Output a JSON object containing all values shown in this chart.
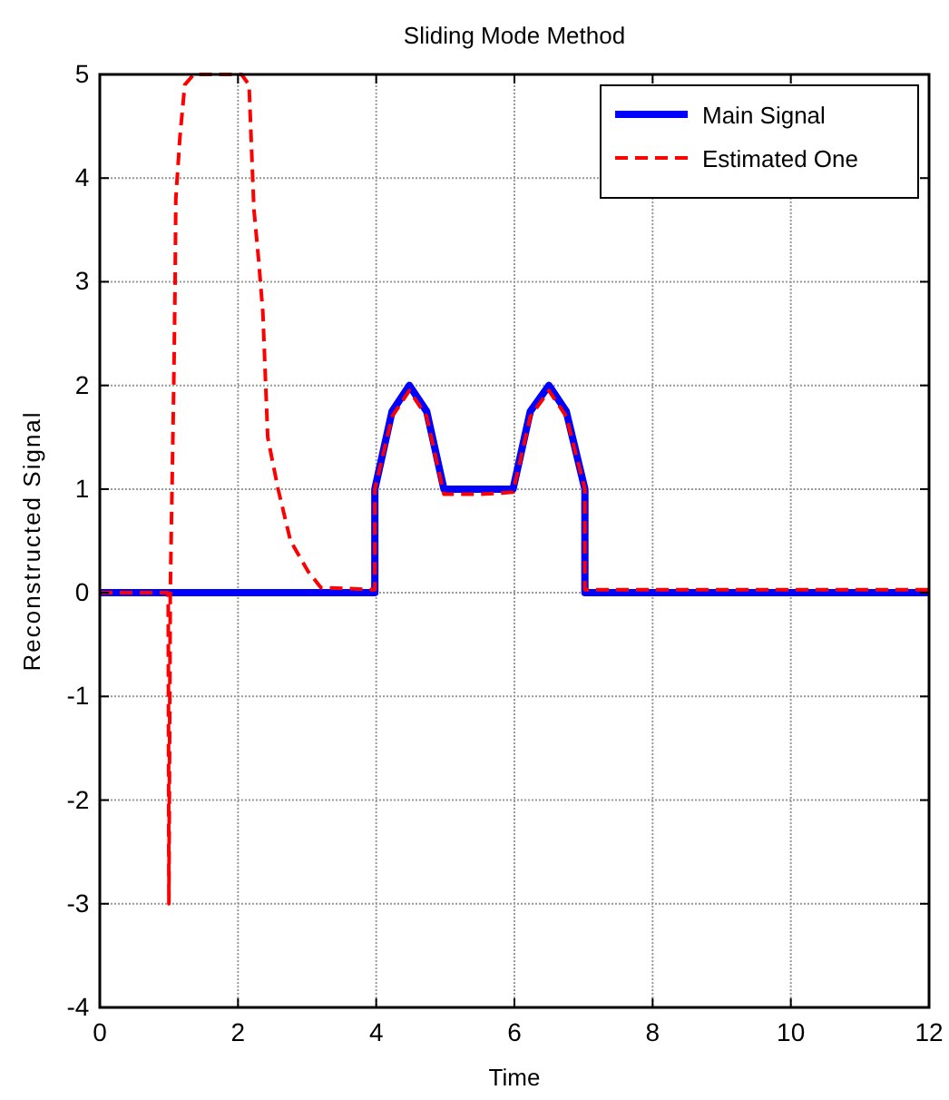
{
  "chart_data": {
    "type": "line",
    "title": "Sliding Mode Method",
    "xlabel": "Time",
    "ylabel": "Reconstructed Signal",
    "xlim": [
      0,
      12
    ],
    "ylim": [
      -4,
      5
    ],
    "xticks": [
      0,
      2,
      4,
      6,
      8,
      10,
      12
    ],
    "yticks": [
      -4,
      -3,
      -2,
      -1,
      0,
      1,
      2,
      3,
      4,
      5
    ],
    "grid": true,
    "legend": "top right",
    "marker": "none",
    "series": [
      {
        "name": "Main Signal",
        "color": "#0000ff",
        "line_style": "solid",
        "x": [
          0,
          3.98,
          3.98,
          4.23,
          4.48,
          4.73,
          4.98,
          5.98,
          6.23,
          6.5,
          6.75,
          7.02,
          7.02,
          12
        ],
        "values": [
          0,
          0,
          1,
          1.75,
          2,
          1.75,
          1,
          1,
          1.75,
          2,
          1.75,
          1,
          0,
          0
        ]
      },
      {
        "name": "Estimated One",
        "color": "#ff0000",
        "line_style": "dashed",
        "x": [
          0,
          0.99,
          1.0,
          1.02,
          1.07,
          1.09,
          1.1,
          1.16,
          1.23,
          1.36,
          2.05,
          2.16,
          2.23,
          2.3,
          2.36,
          2.43,
          2.58,
          2.76,
          3.02,
          3.2,
          3.98,
          3.98,
          4.23,
          4.48,
          4.73,
          4.98,
          5.5,
          5.98,
          6.23,
          6.5,
          6.75,
          7.02,
          7.02,
          12
        ],
        "values": [
          0,
          0,
          -3,
          0,
          2,
          3,
          3.8,
          4.4,
          4.9,
          5,
          5,
          4.9,
          3.7,
          3.2,
          2.7,
          1.5,
          1,
          0.5,
          0.2,
          0.05,
          0.03,
          1,
          1.7,
          1.95,
          1.7,
          0.95,
          0.95,
          0.97,
          1.7,
          1.95,
          1.7,
          1,
          0.03,
          0.03
        ]
      }
    ]
  }
}
